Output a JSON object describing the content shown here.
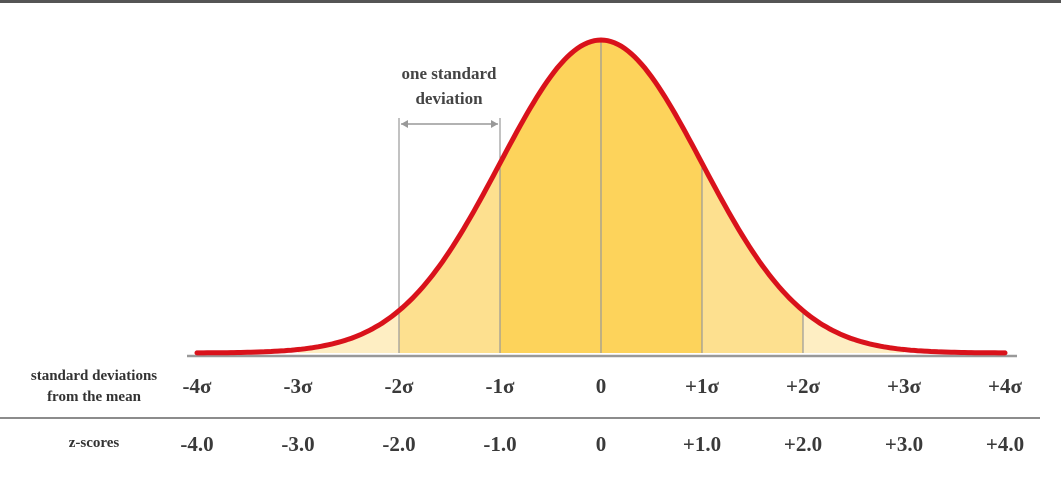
{
  "chart_data": {
    "type": "area",
    "distribution": "standard normal",
    "x_range": [
      -4,
      4
    ],
    "mean": 0,
    "sd_tick_labels": [
      "-4σ",
      "-3σ",
      "-2σ",
      "-1σ",
      "0",
      "+1σ",
      "+2σ",
      "+3σ",
      "+4σ"
    ],
    "z_score_labels": [
      "-4.0",
      "-3.0",
      "-2.0",
      "-1.0",
      "0",
      "+1.0",
      "+2.0",
      "+3.0",
      "+4.0"
    ],
    "row_labels": {
      "sd_line1": "standard deviations",
      "sd_line2": "from the mean",
      "z": "z-scores"
    },
    "annotation": {
      "line1": "one standard",
      "line2": "deviation",
      "from": -2,
      "to": -1
    },
    "bands": [
      {
        "from": -1,
        "to": 1,
        "color": "#fdd35b"
      },
      {
        "from": -2,
        "to": -1,
        "color": "#fde08f"
      },
      {
        "from": 1,
        "to": 2,
        "color": "#fde08f"
      },
      {
        "from": -3,
        "to": -2,
        "color": "#feeec3"
      },
      {
        "from": 2,
        "to": 3,
        "color": "#feeec3"
      }
    ],
    "colors": {
      "curve": "#d9121b",
      "sd_lines": "#999999",
      "axis": "#999999",
      "divider": "#666666"
    }
  }
}
